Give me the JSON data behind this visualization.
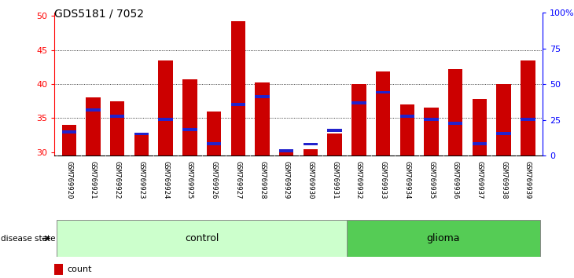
{
  "title": "GDS5181 / 7052",
  "samples": [
    "GSM769920",
    "GSM769921",
    "GSM769922",
    "GSM769923",
    "GSM769924",
    "GSM769925",
    "GSM769926",
    "GSM769927",
    "GSM769928",
    "GSM769929",
    "GSM769930",
    "GSM769931",
    "GSM769932",
    "GSM769933",
    "GSM769934",
    "GSM769935",
    "GSM769936",
    "GSM769937",
    "GSM769938",
    "GSM769939"
  ],
  "count_values": [
    34.0,
    38.0,
    37.5,
    32.5,
    43.5,
    40.7,
    36.0,
    49.2,
    40.2,
    30.3,
    30.5,
    32.7,
    40.0,
    41.8,
    37.0,
    36.5,
    42.2,
    37.8,
    40.0,
    43.5
  ],
  "percentile_values": [
    33.0,
    36.2,
    35.3,
    32.7,
    34.8,
    33.3,
    31.3,
    37.0,
    38.2,
    30.2,
    31.2,
    33.2,
    37.2,
    38.8,
    35.3,
    34.8,
    34.2,
    31.3,
    32.8,
    34.8
  ],
  "control_count": 12,
  "glioma_count": 8,
  "ymin": 29.5,
  "ymax": 50.5,
  "yticks": [
    30,
    35,
    40,
    45,
    50
  ],
  "bar_color": "#cc0000",
  "percentile_color": "#2222cc",
  "control_color": "#ccffcc",
  "glioma_color": "#55cc55",
  "tick_bg_color": "#cccccc",
  "title_fontsize": 10,
  "right_yticks_pct": [
    0,
    25,
    50,
    75,
    100
  ],
  "right_ylabels": [
    "0",
    "25",
    "50",
    "75",
    "100%"
  ]
}
